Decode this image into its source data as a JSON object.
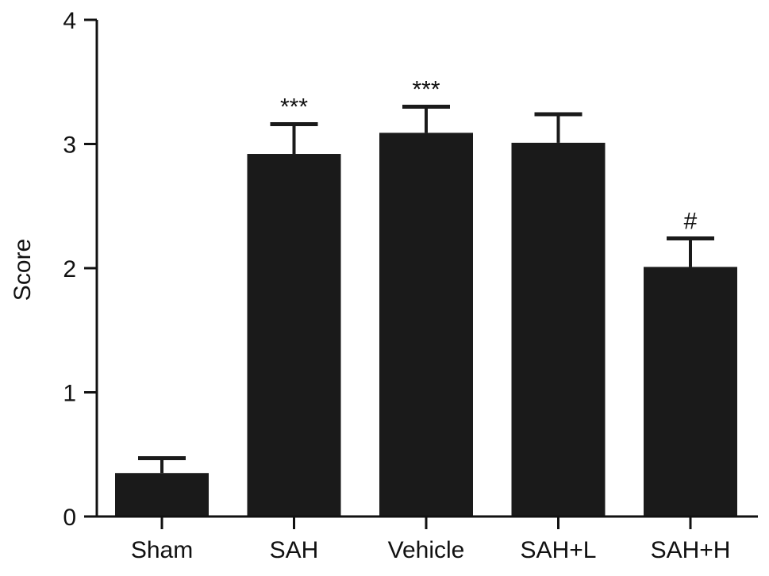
{
  "chart_data": {
    "type": "bar",
    "title": "",
    "xlabel": "",
    "ylabel": "Score",
    "ylim": [
      0,
      4
    ],
    "yticks": [
      "0",
      "1",
      "2",
      "3",
      "4"
    ],
    "grid": false,
    "bar_color": "#1a1a1a",
    "categories": [
      "Sham",
      "SAH",
      "Vehicle",
      "SAH+L",
      "SAH+H"
    ],
    "values": [
      0.35,
      2.92,
      3.09,
      3.01,
      2.01
    ],
    "error_upper": [
      0.12,
      0.24,
      0.21,
      0.23,
      0.23
    ],
    "annotations": [
      "",
      "***",
      "***",
      "",
      "#"
    ]
  }
}
